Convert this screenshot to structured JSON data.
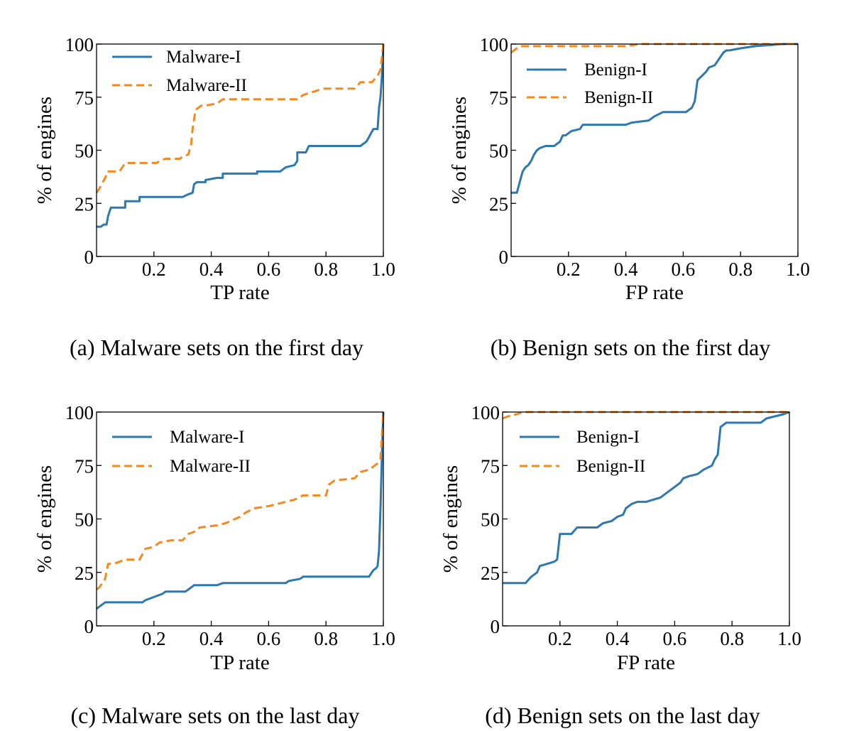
{
  "colors": {
    "series_1": "#2e78b0",
    "series_2": "#f28a22"
  },
  "chart_data": [
    {
      "type": "line",
      "caption": "(a)  Malware sets on the first day",
      "xlabel": "TP rate",
      "ylabel": "% of engines",
      "xlim": [
        0,
        1.0
      ],
      "ylim": [
        0,
        100
      ],
      "xticks": [
        "0.2",
        "0.4",
        "0.6",
        "0.8",
        "1.0"
      ],
      "yticks": [
        "0",
        "25",
        "50",
        "75",
        "100"
      ],
      "grid": false,
      "legend": "top-left",
      "series": [
        {
          "name": "Malware-I",
          "style": "solid",
          "color": "#2e78b0",
          "x": [
            0.0,
            0.015,
            0.025,
            0.035,
            0.04,
            0.05,
            0.1,
            0.1,
            0.15,
            0.15,
            0.3,
            0.315,
            0.335,
            0.34,
            0.35,
            0.38,
            0.38,
            0.42,
            0.44,
            0.44,
            0.56,
            0.56,
            0.64,
            0.66,
            0.69,
            0.7,
            0.7,
            0.73,
            0.74,
            0.9,
            0.92,
            0.94,
            0.945,
            0.965,
            0.98,
            0.985,
            0.99,
            0.995,
            1.0
          ],
          "y": [
            14,
            14,
            15,
            15,
            19,
            23,
            23,
            26,
            26,
            28,
            28,
            29,
            30,
            34,
            35,
            35,
            36,
            37,
            37,
            39,
            39,
            40,
            40,
            42,
            43,
            45,
            49,
            49,
            52,
            52,
            52,
            54,
            55,
            60,
            60,
            70,
            75,
            85,
            100
          ]
        },
        {
          "name": "Malware-II",
          "style": "dashed",
          "color": "#f28a22",
          "x": [
            0.0,
            0.01,
            0.03,
            0.04,
            0.08,
            0.1,
            0.21,
            0.22,
            0.24,
            0.29,
            0.3,
            0.32,
            0.33,
            0.335,
            0.345,
            0.355,
            0.365,
            0.38,
            0.42,
            0.44,
            0.7,
            0.72,
            0.79,
            0.9,
            0.92,
            0.96,
            0.98,
            0.99,
            1.0
          ],
          "y": [
            30,
            32,
            37,
            40,
            40,
            44,
            44,
            45,
            46,
            46,
            47,
            48,
            53,
            60,
            69,
            70,
            71,
            71,
            72,
            74,
            74,
            76,
            79,
            79,
            82,
            82,
            85,
            88,
            100
          ]
        }
      ]
    },
    {
      "type": "line",
      "caption": "(b)  Benign sets on the first day",
      "xlabel": "FP rate",
      "ylabel": "% of engines",
      "xlim": [
        0,
        1.0
      ],
      "ylim": [
        0,
        100
      ],
      "xticks": [
        "0.2",
        "0.4",
        "0.6",
        "0.8",
        "1.0"
      ],
      "yticks": [
        "0",
        "25",
        "50",
        "75",
        "100"
      ],
      "grid": false,
      "legend": "top-left",
      "series": [
        {
          "name": "Benign-I",
          "style": "solid",
          "color": "#2e78b0",
          "x": [
            0.0,
            0.02,
            0.03,
            0.04,
            0.05,
            0.06,
            0.07,
            0.08,
            0.09,
            0.1,
            0.12,
            0.15,
            0.17,
            0.18,
            0.19,
            0.21,
            0.24,
            0.25,
            0.4,
            0.42,
            0.48,
            0.5,
            0.53,
            0.61,
            0.63,
            0.64,
            0.65,
            0.68,
            0.69,
            0.71,
            0.72,
            0.74,
            0.75,
            0.76,
            0.8,
            0.85,
            0.95,
            1.0
          ],
          "y": [
            30,
            30,
            35,
            40,
            42,
            43,
            45,
            48,
            50,
            51,
            52,
            52,
            54,
            57,
            57,
            59,
            60,
            62,
            62,
            63,
            64,
            66,
            68,
            68,
            70,
            73,
            83,
            87,
            89,
            90,
            92,
            96,
            97,
            97,
            98,
            99,
            100,
            100
          ]
        },
        {
          "name": "Benign-II",
          "style": "dashed",
          "color": "#f28a22",
          "x": [
            0.0,
            0.02,
            0.03,
            0.4,
            0.45,
            1.0
          ],
          "y": [
            96,
            98,
            99,
            99,
            100,
            100
          ]
        }
      ]
    },
    {
      "type": "line",
      "caption": "(c)  Malware sets on the last day",
      "xlabel": "TP rate",
      "ylabel": "% of engines",
      "xlim": [
        0,
        1.0
      ],
      "ylim": [
        0,
        100
      ],
      "xticks": [
        "0.2",
        "0.4",
        "0.6",
        "0.8",
        "1.0"
      ],
      "yticks": [
        "0",
        "25",
        "50",
        "75",
        "100"
      ],
      "grid": false,
      "legend": "top-left",
      "series": [
        {
          "name": "Malware-I",
          "style": "solid",
          "color": "#2e78b0",
          "x": [
            0.0,
            0.01,
            0.02,
            0.03,
            0.16,
            0.17,
            0.19,
            0.23,
            0.24,
            0.31,
            0.33,
            0.34,
            0.42,
            0.44,
            0.46,
            0.66,
            0.67,
            0.71,
            0.72,
            0.95,
            0.96,
            0.965,
            0.975,
            0.98,
            0.985,
            0.99,
            0.995,
            1.0
          ],
          "y": [
            8,
            9,
            10,
            11,
            11,
            12,
            13,
            15,
            16,
            16,
            18,
            19,
            19,
            20,
            20,
            20,
            21,
            22,
            23,
            23,
            25,
            26,
            27,
            28,
            35,
            55,
            80,
            100
          ]
        },
        {
          "name": "Malware-II",
          "style": "dashed",
          "color": "#f28a22",
          "x": [
            0.0,
            0.01,
            0.03,
            0.04,
            0.06,
            0.1,
            0.15,
            0.17,
            0.2,
            0.22,
            0.26,
            0.3,
            0.32,
            0.34,
            0.36,
            0.42,
            0.45,
            0.5,
            0.52,
            0.55,
            0.6,
            0.66,
            0.69,
            0.72,
            0.8,
            0.81,
            0.83,
            0.9,
            0.92,
            0.95,
            0.97,
            0.98,
            0.99,
            1.0
          ],
          "y": [
            17,
            18,
            22,
            29,
            29,
            31,
            31,
            36,
            37,
            39,
            40,
            40,
            43,
            44,
            46,
            47,
            48,
            51,
            53,
            55,
            56,
            58,
            59,
            61,
            61,
            66,
            68,
            69,
            72,
            73,
            75,
            76,
            78,
            100
          ]
        }
      ]
    },
    {
      "type": "line",
      "caption": "(d)  Benign sets on the last day",
      "xlabel": "FP rate",
      "ylabel": "% of engines",
      "xlim": [
        0,
        1.0
      ],
      "ylim": [
        0,
        100
      ],
      "xticks": [
        "0.2",
        "0.4",
        "0.6",
        "0.8",
        "1.0"
      ],
      "yticks": [
        "0",
        "25",
        "50",
        "75",
        "100"
      ],
      "grid": false,
      "legend": "top-left",
      "series": [
        {
          "name": "Benign-I",
          "style": "solid",
          "color": "#2e78b0",
          "x": [
            0.0,
            0.08,
            0.1,
            0.12,
            0.13,
            0.18,
            0.19,
            0.2,
            0.24,
            0.26,
            0.33,
            0.35,
            0.38,
            0.4,
            0.42,
            0.43,
            0.45,
            0.47,
            0.5,
            0.55,
            0.58,
            0.6,
            0.62,
            0.63,
            0.65,
            0.68,
            0.7,
            0.73,
            0.74,
            0.75,
            0.76,
            0.78,
            0.8,
            0.9,
            0.92,
            0.95,
            0.98,
            1.0
          ],
          "y": [
            20,
            20,
            23,
            25,
            28,
            30,
            31,
            43,
            43,
            46,
            46,
            48,
            49,
            51,
            52,
            55,
            57,
            58,
            58,
            60,
            63,
            65,
            67,
            69,
            70,
            71,
            73,
            75,
            78,
            80,
            93,
            95,
            95,
            95,
            97,
            98,
            99,
            100
          ]
        },
        {
          "name": "Benign-II",
          "style": "dashed",
          "color": "#f28a22",
          "x": [
            0.0,
            0.02,
            0.05,
            0.07,
            1.0
          ],
          "y": [
            97,
            98,
            99,
            100,
            100
          ]
        }
      ]
    }
  ]
}
